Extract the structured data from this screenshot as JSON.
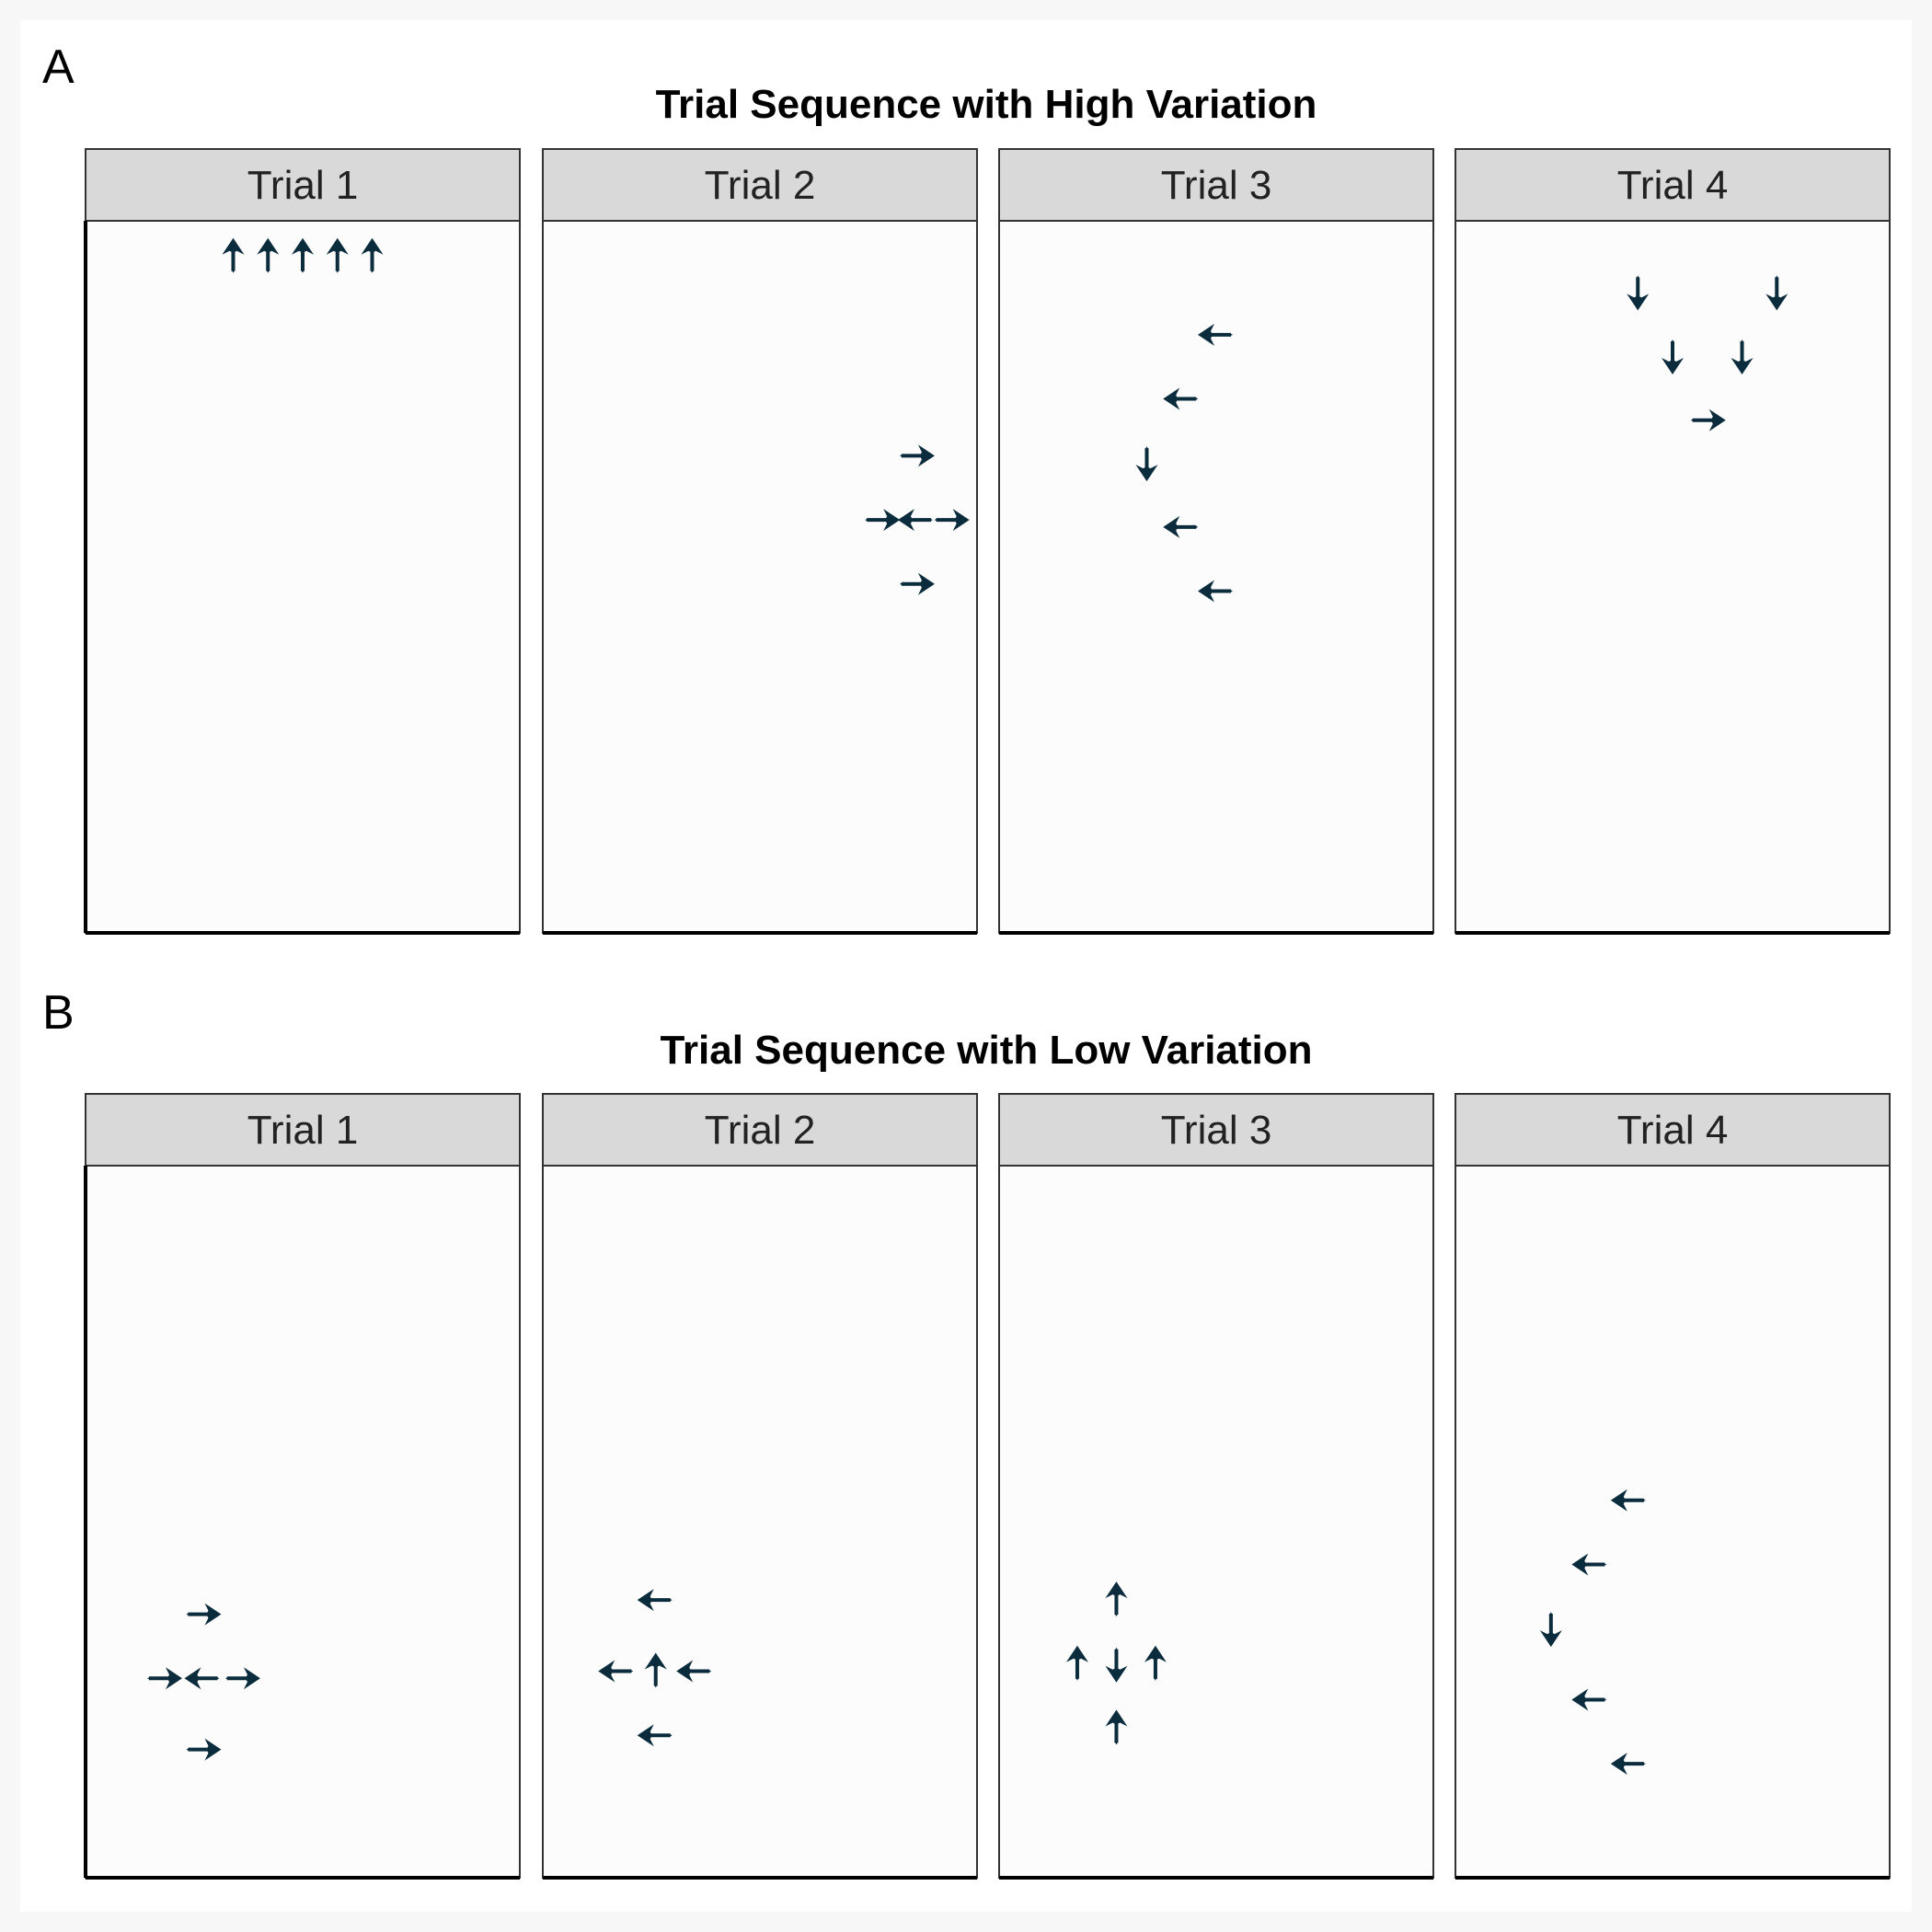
{
  "chart_data": [
    {
      "type": "scatter",
      "panel_label": "A",
      "title": "Trial Sequence with High Variation",
      "facets": [
        {
          "label": "Trial 1",
          "arrows": [
            {
              "x": 3.4,
              "y": 9.5,
              "dir": "up"
            },
            {
              "x": 4.2,
              "y": 9.5,
              "dir": "up"
            },
            {
              "x": 5.0,
              "y": 9.5,
              "dir": "up"
            },
            {
              "x": 5.8,
              "y": 9.5,
              "dir": "up"
            },
            {
              "x": 6.6,
              "y": 9.5,
              "dir": "up"
            }
          ]
        },
        {
          "label": "Trial 2",
          "arrows": [
            {
              "x": 8.6,
              "y": 6.7,
              "dir": "right"
            },
            {
              "x": 7.8,
              "y": 5.8,
              "dir": "right"
            },
            {
              "x": 8.6,
              "y": 5.8,
              "dir": "left"
            },
            {
              "x": 9.4,
              "y": 5.8,
              "dir": "right"
            },
            {
              "x": 8.6,
              "y": 4.9,
              "dir": "right"
            }
          ]
        },
        {
          "label": "Trial 3",
          "arrows": [
            {
              "x": 5.0,
              "y": 8.4,
              "dir": "left"
            },
            {
              "x": 4.2,
              "y": 7.5,
              "dir": "left"
            },
            {
              "x": 3.4,
              "y": 6.6,
              "dir": "down"
            },
            {
              "x": 4.2,
              "y": 5.7,
              "dir": "left"
            },
            {
              "x": 5.0,
              "y": 4.8,
              "dir": "left"
            }
          ]
        },
        {
          "label": "Trial 4",
          "arrows": [
            {
              "x": 4.2,
              "y": 9.0,
              "dir": "down"
            },
            {
              "x": 7.4,
              "y": 9.0,
              "dir": "down"
            },
            {
              "x": 5.0,
              "y": 8.1,
              "dir": "down"
            },
            {
              "x": 6.6,
              "y": 8.1,
              "dir": "down"
            },
            {
              "x": 5.8,
              "y": 7.2,
              "dir": "right"
            }
          ]
        }
      ],
      "xlim": [
        0,
        10
      ],
      "ylim": [
        0,
        10
      ],
      "grid": false
    },
    {
      "type": "scatter",
      "panel_label": "B",
      "title": "Trial Sequence with Low Variation",
      "facets": [
        {
          "label": "Trial 1",
          "arrows": [
            {
              "x": 2.7,
              "y": 3.7,
              "dir": "right"
            },
            {
              "x": 1.8,
              "y": 2.8,
              "dir": "right"
            },
            {
              "x": 2.7,
              "y": 2.8,
              "dir": "left"
            },
            {
              "x": 3.6,
              "y": 2.8,
              "dir": "right"
            },
            {
              "x": 2.7,
              "y": 1.8,
              "dir": "right"
            }
          ]
        },
        {
          "label": "Trial 2",
          "arrows": [
            {
              "x": 2.6,
              "y": 3.9,
              "dir": "left"
            },
            {
              "x": 1.7,
              "y": 2.9,
              "dir": "left"
            },
            {
              "x": 2.6,
              "y": 2.9,
              "dir": "up"
            },
            {
              "x": 3.5,
              "y": 2.9,
              "dir": "left"
            },
            {
              "x": 2.6,
              "y": 2.0,
              "dir": "left"
            }
          ]
        },
        {
          "label": "Trial 3",
          "arrows": [
            {
              "x": 2.7,
              "y": 3.9,
              "dir": "up"
            },
            {
              "x": 1.8,
              "y": 3.0,
              "dir": "up"
            },
            {
              "x": 2.7,
              "y": 3.0,
              "dir": "down"
            },
            {
              "x": 3.6,
              "y": 3.0,
              "dir": "up"
            },
            {
              "x": 2.7,
              "y": 2.1,
              "dir": "up"
            }
          ]
        },
        {
          "label": "Trial 4",
          "arrows": [
            {
              "x": 4.0,
              "y": 5.3,
              "dir": "left"
            },
            {
              "x": 3.1,
              "y": 4.4,
              "dir": "left"
            },
            {
              "x": 2.2,
              "y": 3.5,
              "dir": "down"
            },
            {
              "x": 3.1,
              "y": 2.5,
              "dir": "left"
            },
            {
              "x": 4.0,
              "y": 1.6,
              "dir": "left"
            }
          ]
        }
      ],
      "xlim": [
        0,
        10
      ],
      "ylim": [
        0,
        10
      ],
      "grid": false
    }
  ],
  "colors": {
    "arrow": "#0b2c3d",
    "strip_fill": "#d9d9d9",
    "panel_fill": "#fcfcfc",
    "figure_bg": "#ffffff"
  }
}
